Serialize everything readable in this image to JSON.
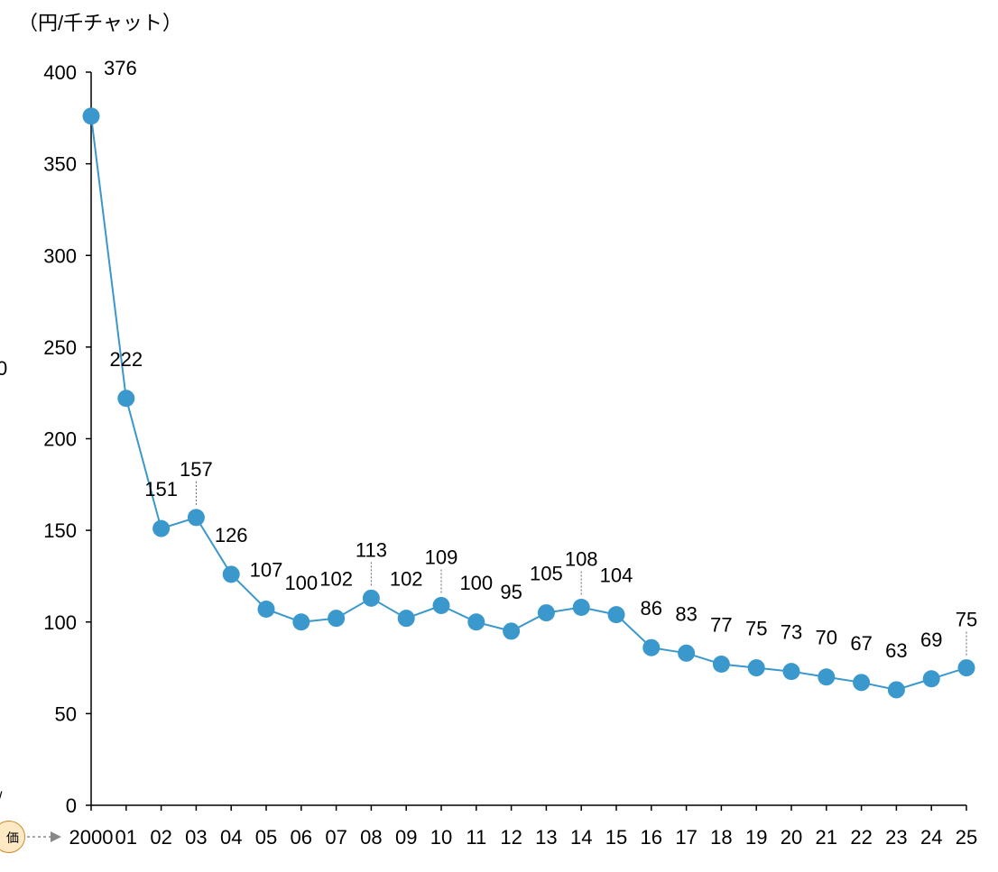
{
  "chart_data": {
    "type": "line",
    "unit_label": "（円/千チャット）",
    "categories": [
      "2000",
      "01",
      "02",
      "03",
      "04",
      "05",
      "06",
      "07",
      "08",
      "09",
      "10",
      "11",
      "12",
      "13",
      "14",
      "15",
      "16",
      "17",
      "18",
      "19",
      "20",
      "21",
      "22",
      "23",
      "24",
      "25"
    ],
    "values": [
      376,
      222,
      151,
      157,
      126,
      107,
      100,
      102,
      113,
      102,
      109,
      100,
      95,
      105,
      108,
      104,
      86,
      83,
      77,
      75,
      73,
      70,
      67,
      63,
      69,
      75
    ],
    "ylim": [
      0,
      400
    ],
    "yticks": [
      0,
      50,
      100,
      150,
      200,
      250,
      300,
      350,
      400
    ],
    "grid": false,
    "legend": "none",
    "colors": {
      "line": "#3a98cc",
      "marker": "#3a98cc",
      "axis": "#000000"
    }
  },
  "edge_fragments": {
    "left_text_1": "0",
    "left_text_2": "/",
    "badge_text": "価"
  }
}
